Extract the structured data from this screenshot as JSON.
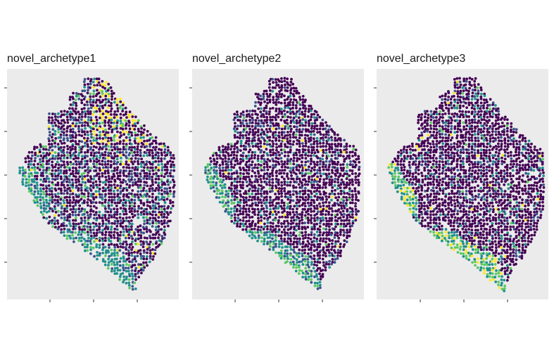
{
  "chart_data": [
    {
      "type": "scatter",
      "title": "novel_archetype1",
      "xlabel": "",
      "ylabel": "",
      "grid": false,
      "legend": "none",
      "palette": [
        "#440154",
        "#3b528b",
        "#21908c",
        "#5dc863",
        "#fde725"
      ],
      "dominant_fraction": 0.62,
      "highlights": [
        "coastal band: teal",
        "north-east edge: yellow"
      ]
    },
    {
      "type": "scatter",
      "title": "novel_archetype2",
      "xlabel": "",
      "ylabel": "",
      "grid": false,
      "legend": "none",
      "palette": [
        "#440154",
        "#3b528b",
        "#21908c",
        "#5dc863",
        "#fde725"
      ],
      "dominant_fraction": 0.82,
      "highlights": [
        "coastal band: teal-green",
        "scattered green spots"
      ]
    },
    {
      "type": "scatter",
      "title": "novel_archetype3",
      "xlabel": "",
      "ylabel": "",
      "grid": false,
      "legend": "none",
      "palette": [
        "#440154",
        "#3b528b",
        "#21908c",
        "#5dc863",
        "#fde725"
      ],
      "dominant_fraction": 0.8,
      "highlights": [
        "coastal band: green-teal",
        "scattered teal spots"
      ]
    }
  ]
}
